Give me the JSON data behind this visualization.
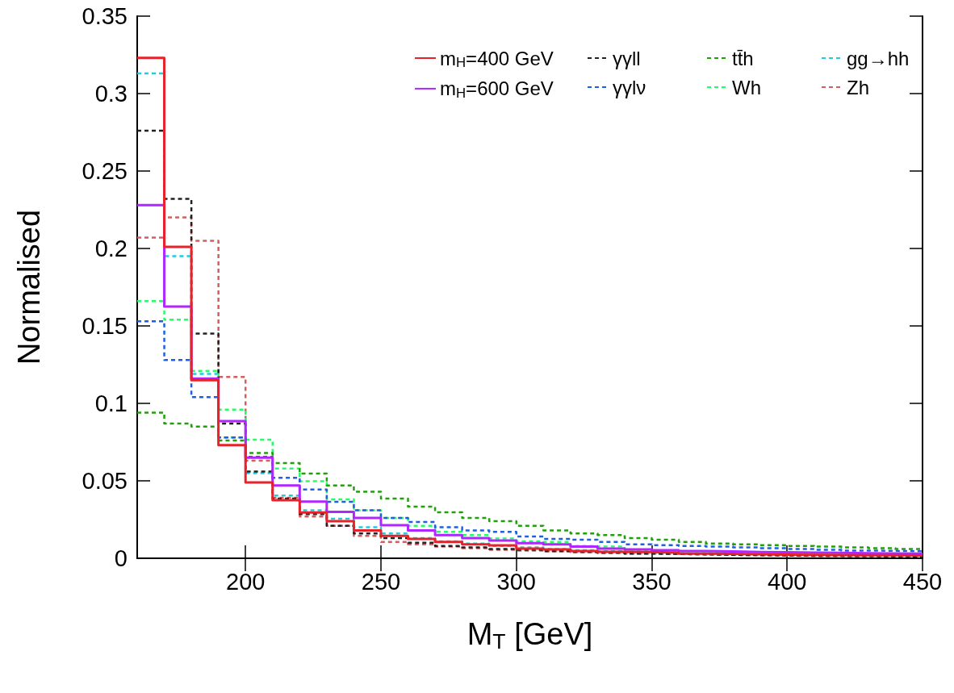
{
  "chart_data": {
    "type": "histogram",
    "xlabel": "M$_{T}$ [GeV]",
    "ylabel": "Normalised",
    "bins": [
      160,
      170,
      180,
      190,
      200,
      210,
      220,
      230,
      240,
      250,
      260,
      270,
      280,
      290,
      300,
      310,
      320,
      330,
      340,
      350,
      360,
      370,
      380,
      390,
      400,
      410,
      420,
      430,
      440,
      450
    ],
    "xlim": [
      160,
      450
    ],
    "xticks": [
      200,
      250,
      300,
      350,
      400,
      450
    ],
    "ylim": [
      0,
      0.35
    ],
    "yticks": [
      0,
      0.05,
      0.1,
      0.15,
      0.2,
      0.25,
      0.3,
      0.35
    ],
    "grid": false,
    "legend": "top right",
    "line_style": "dashed",
    "series": [
      {
        "name": "m$_{H}$=400 GeV",
        "color": "#e8222a",
        "line_style": "solid",
        "values": [
          0.323,
          0.201,
          0.115,
          0.073,
          0.049,
          0.0375,
          0.0296,
          0.024,
          0.018,
          0.0145,
          0.0125,
          0.0105,
          0.009,
          0.0083,
          0.0063,
          0.0057,
          0.0047,
          0.0042,
          0.004,
          0.0037,
          0.003,
          0.0028,
          0.0026,
          0.0024,
          0.0022,
          0.0021,
          0.002,
          0.0019,
          0.0018
        ]
      },
      {
        "name": "m$_{H}$=600 GeV",
        "color": "#b026ff",
        "line_style": "solid",
        "values": [
          0.228,
          0.1625,
          0.116,
          0.0885,
          0.065,
          0.047,
          0.0366,
          0.03,
          0.026,
          0.0213,
          0.018,
          0.015,
          0.013,
          0.0115,
          0.0098,
          0.009,
          0.0075,
          0.0063,
          0.0057,
          0.0052,
          0.0047,
          0.0044,
          0.0041,
          0.0039,
          0.0037,
          0.0035,
          0.0033,
          0.0031,
          0.003
        ]
      },
      {
        "name": "γγll",
        "color": "#222222",
        "values": [
          0.276,
          0.232,
          0.145,
          0.087,
          0.056,
          0.0385,
          0.0285,
          0.021,
          0.016,
          0.013,
          0.01,
          0.008,
          0.007,
          0.006,
          0.0055,
          0.0045,
          0.004,
          0.0035,
          0.003,
          0.0028,
          0.0025,
          0.0022,
          0.002,
          0.0018,
          0.0016,
          0.0015,
          0.0014,
          0.0013,
          0.0012
        ]
      },
      {
        "name": "γγlν",
        "color": "#1f5fe0",
        "values": [
          0.153,
          0.128,
          0.104,
          0.078,
          0.0655,
          0.052,
          0.0444,
          0.0365,
          0.031,
          0.026,
          0.0235,
          0.02,
          0.018,
          0.017,
          0.014,
          0.0125,
          0.012,
          0.0105,
          0.009,
          0.0085,
          0.008,
          0.0075,
          0.007,
          0.0065,
          0.006,
          0.0055,
          0.005,
          0.0048,
          0.0045
        ]
      },
      {
        "name": "tt̄h",
        "color": "#22a00c",
        "values": [
          0.094,
          0.087,
          0.085,
          0.076,
          0.068,
          0.0615,
          0.0547,
          0.047,
          0.043,
          0.0385,
          0.0333,
          0.0297,
          0.026,
          0.024,
          0.021,
          0.018,
          0.016,
          0.015,
          0.013,
          0.012,
          0.0105,
          0.0095,
          0.009,
          0.0085,
          0.008,
          0.0075,
          0.007,
          0.0065,
          0.006
        ]
      },
      {
        "name": "Wh",
        "color": "#22ff66",
        "values": [
          0.166,
          0.154,
          0.121,
          0.096,
          0.0765,
          0.058,
          0.0497,
          0.038,
          0.031,
          0.026,
          0.021,
          0.017,
          0.015,
          0.0127,
          0.011,
          0.0105,
          0.008,
          0.0075,
          0.0055,
          0.005,
          0.0045,
          0.0042,
          0.004,
          0.0037,
          0.0035,
          0.0033,
          0.003,
          0.0028,
          0.0026
        ]
      },
      {
        "name": "gg→hh",
        "color": "#22ccdd",
        "values": [
          0.313,
          0.195,
          0.119,
          0.078,
          0.055,
          0.0405,
          0.031,
          0.0255,
          0.02,
          0.016,
          0.013,
          0.011,
          0.0095,
          0.008,
          0.007,
          0.006,
          0.0052,
          0.0046,
          0.004,
          0.0036,
          0.0032,
          0.003,
          0.0027,
          0.0025,
          0.0023,
          0.0021,
          0.002,
          0.0019,
          0.0018
        ]
      },
      {
        "name": "Zh",
        "color": "#d06060",
        "values": [
          0.207,
          0.22,
          0.205,
          0.117,
          0.063,
          0.039,
          0.027,
          0.021,
          0.0145,
          0.0105,
          0.009,
          0.0075,
          0.0065,
          0.0055,
          0.005,
          0.0045,
          0.004,
          0.0035,
          0.003,
          0.0027,
          0.0024,
          0.0021,
          0.0019,
          0.0017,
          0.0015,
          0.0014,
          0.0013,
          0.0012,
          0.0011
        ]
      }
    ]
  }
}
